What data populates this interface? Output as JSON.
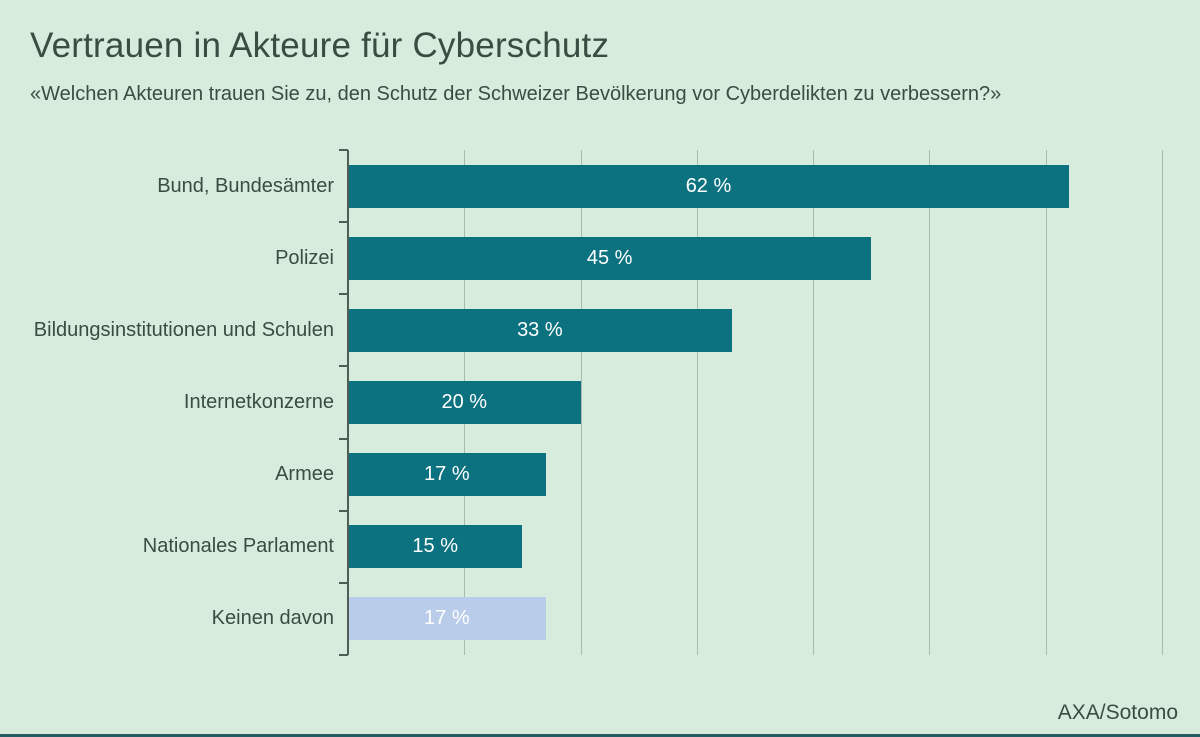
{
  "header": {
    "title": "Vertrauen in Akteure für Cyberschutz",
    "subtitle": "«Welchen Akteuren trauen Sie zu, den Schutz der Schweizer Bevölkerung vor Cyberdelikten zu verbessern?»"
  },
  "footer": {
    "source": "AXA/Sotomo"
  },
  "colors": {
    "background": "#d7ecdd",
    "bar_teal": "#0d7280",
    "bar_highlight_lavender": "#b9cce9",
    "gridline": "#a7bcae",
    "axis": "#4e5e54",
    "text_dark": "#3b4c43",
    "value_text": "#ffffff",
    "bottom_strip": "#245d64"
  },
  "chart_data": {
    "type": "bar",
    "orientation": "horizontal",
    "title": "Vertrauen in Akteure für Cyberschutz",
    "subtitle": "«Welchen Akteuren trauen Sie zu, den Schutz der Schweizer Bevölkerung vor Cyberdelikten zu verbessern?»",
    "categories": [
      "Bund, Bundesämter",
      "Polizei",
      "Bildungsinstitutionen und Schulen",
      "Internetkonzerne",
      "Armee",
      "Nationales Parlament",
      "Keinen davon"
    ],
    "values": [
      62,
      45,
      33,
      20,
      17,
      15,
      17
    ],
    "value_labels": [
      "62 %",
      "45 %",
      "33 %",
      "20 %",
      "17 %",
      "15 %",
      "17 %"
    ],
    "bar_colors": [
      "#0d7280",
      "#0d7280",
      "#0d7280",
      "#0d7280",
      "#0d7280",
      "#0d7280",
      "#b9cce9"
    ],
    "xlim": [
      0,
      70
    ],
    "gridline_step": 10,
    "grid": true,
    "legend": null,
    "source": "AXA/Sotomo"
  }
}
